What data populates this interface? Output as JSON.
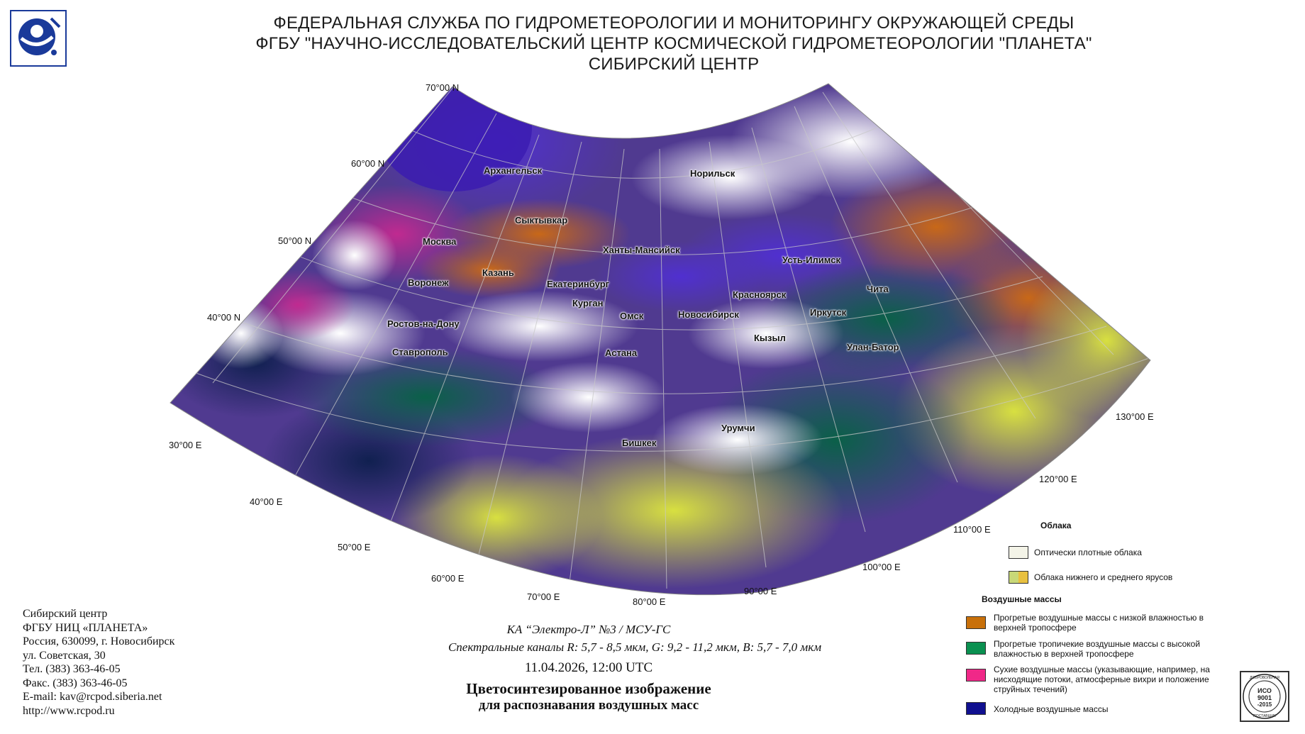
{
  "header": {
    "line1": "ФЕДЕРАЛЬНАЯ СЛУЖБА ПО ГИДРОМЕТЕОРОЛОГИИ И МОНИТОРИНГУ ОКРУЖАЮЩЕЙ СРЕДЫ",
    "line2": "ФГБУ \"НАУЧНО-ИССЛЕДОВАТЕЛЬСКИЙ ЦЕНТР КОСМИЧЕСКОЙ ГИДРОМЕТЕОРОЛОГИИ \"ПЛАНЕТА\"",
    "line3": "СИБИРСКИЙ ЦЕНТР"
  },
  "latitudes": [
    "70°00 N",
    "60°00 N",
    "50°00 N",
    "40°00 N"
  ],
  "longitudes": [
    "30°00 E",
    "40°00 E",
    "50°00 E",
    "60°00 E",
    "70°00 E",
    "80°00 E",
    "90°00 E",
    "100°00 E",
    "110°00 E",
    "120°00 E",
    "130°00 E"
  ],
  "cities": [
    "Архангельск",
    "Норильск",
    "Сыктывкар",
    "Москва",
    "Ханты-Мансийск",
    "Усть-Илимск",
    "Казань",
    "Воронеж",
    "Екатеринбург",
    "Красноярск",
    "Чита",
    "Курган",
    "Иркутск",
    "Омск",
    "Новосибирск",
    "Ростов-на-Дону",
    "Кызыл",
    "Улан-Батор",
    "Астана",
    "Ставрополь",
    "Урумчи",
    "Бишкек"
  ],
  "legend": {
    "clouds_title": "Облака",
    "clouds": [
      {
        "label": "Оптически плотные облака",
        "color": "#f4f4e8"
      },
      {
        "label": "Облака нижнего и среднего ярусов",
        "color": "#c8d878",
        "color2": "#e8c040"
      }
    ],
    "air_title": "Воздушные массы",
    "air": [
      {
        "label": "Прогретые воздушные массы с низкой влажностью в верхней тропосфере",
        "color": "#c8700a"
      },
      {
        "label": "Прогретые тропичекие воздушные массы с высокой влажностью в верхней тропосфере",
        "color": "#0a9050"
      },
      {
        "label": "Сухие воздушные массы (указывающие, например, на нисходящие потоки, атмосферные вихри и положение струйных течений)",
        "color": "#f02888"
      },
      {
        "label": "Холодные воздушные массы",
        "color": "#101090"
      }
    ]
  },
  "address": {
    "lines": [
      "Сибирский центр",
      "ФГБУ НИЦ «ПЛАНЕТА»",
      "Россия, 630099, г. Новосибирск",
      "ул. Советская, 30",
      "Тел. (383) 363-46-05",
      "Факс. (383) 363-46-05",
      "E-mail: kav@rcpod.siberia.net",
      "http://www.rcpod.ru"
    ]
  },
  "caption": {
    "satellite": "КА “Электро-Л” №3 / МСУ-ГС",
    "channels": "Спектральные каналы R: 5,7 - 8,5 мкм, G: 9,2 - 11,2 мкм, B: 5,7 - 7,0 мкм",
    "datetime": "11.04.2026, 12:00 UTC",
    "title1": "Цветосинтезированное изображение",
    "title2": "для распознавания воздушных масс"
  },
  "iso": {
    "top": "ДОБРОВОЛЬНАЯ",
    "l1": "ИСО",
    "l2": "9001",
    "l3": "-2015",
    "bottom": "ПОСТАВЩИК"
  },
  "colors": {
    "cold": "#2a1a9a",
    "dry": "#c03080",
    "warm_dry": "#c8700a",
    "tropical": "#0a7050",
    "clouds": "#f4f4e8",
    "low_clouds": "#d8d860"
  }
}
